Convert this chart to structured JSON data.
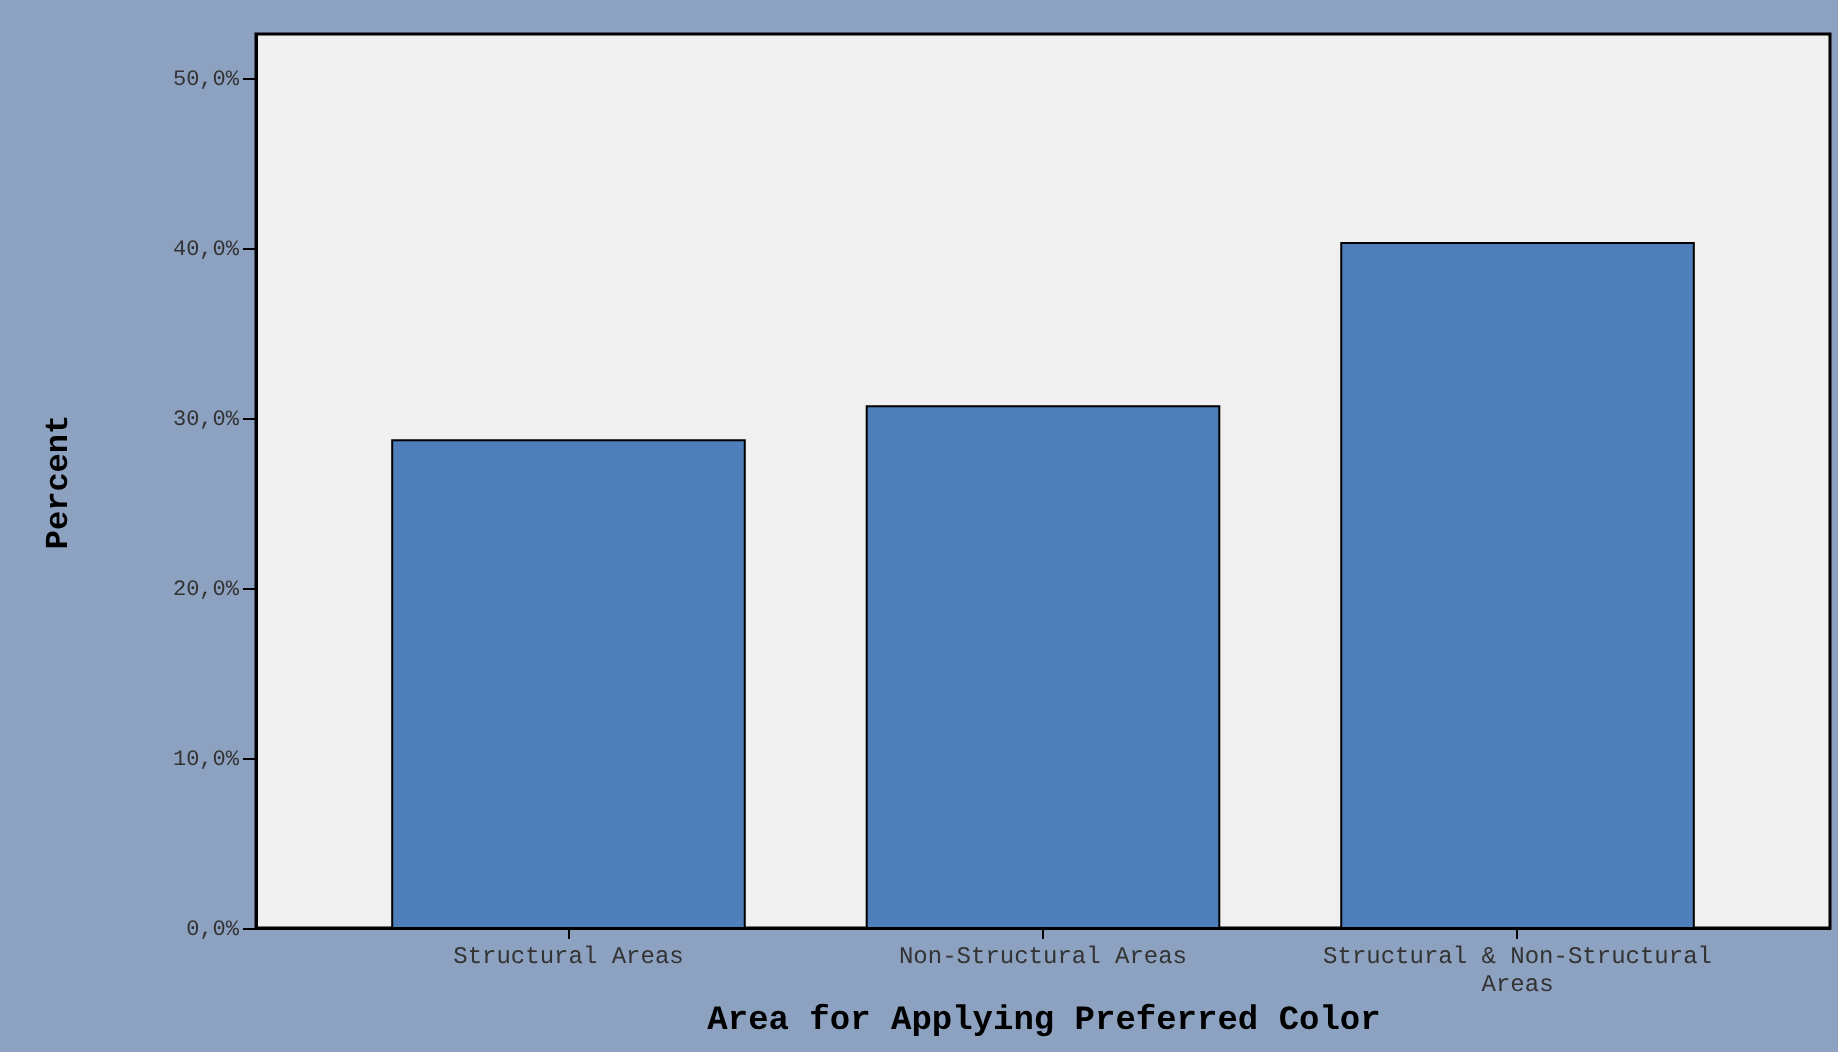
{
  "chart_data": {
    "type": "bar",
    "xlabel": "Area for Applying Preferred Color",
    "ylabel": "Percent",
    "categories": [
      "Structural Areas",
      "Non-Structural Areas",
      "Structural & Non-Structural Areas"
    ],
    "values": [
      28.7,
      30.7,
      40.3
    ],
    "color": "#4f7fbb",
    "ylim": [
      0,
      52.6
    ],
    "yticks": [
      {
        "value": 0,
        "label": "0,0%"
      },
      {
        "value": 10,
        "label": "10,0%"
      },
      {
        "value": 20,
        "label": "20,0%"
      },
      {
        "value": 30,
        "label": "30,0%"
      },
      {
        "value": 40,
        "label": "40,0%"
      },
      {
        "value": 50,
        "label": "50,0%"
      }
    ],
    "grid": false
  }
}
